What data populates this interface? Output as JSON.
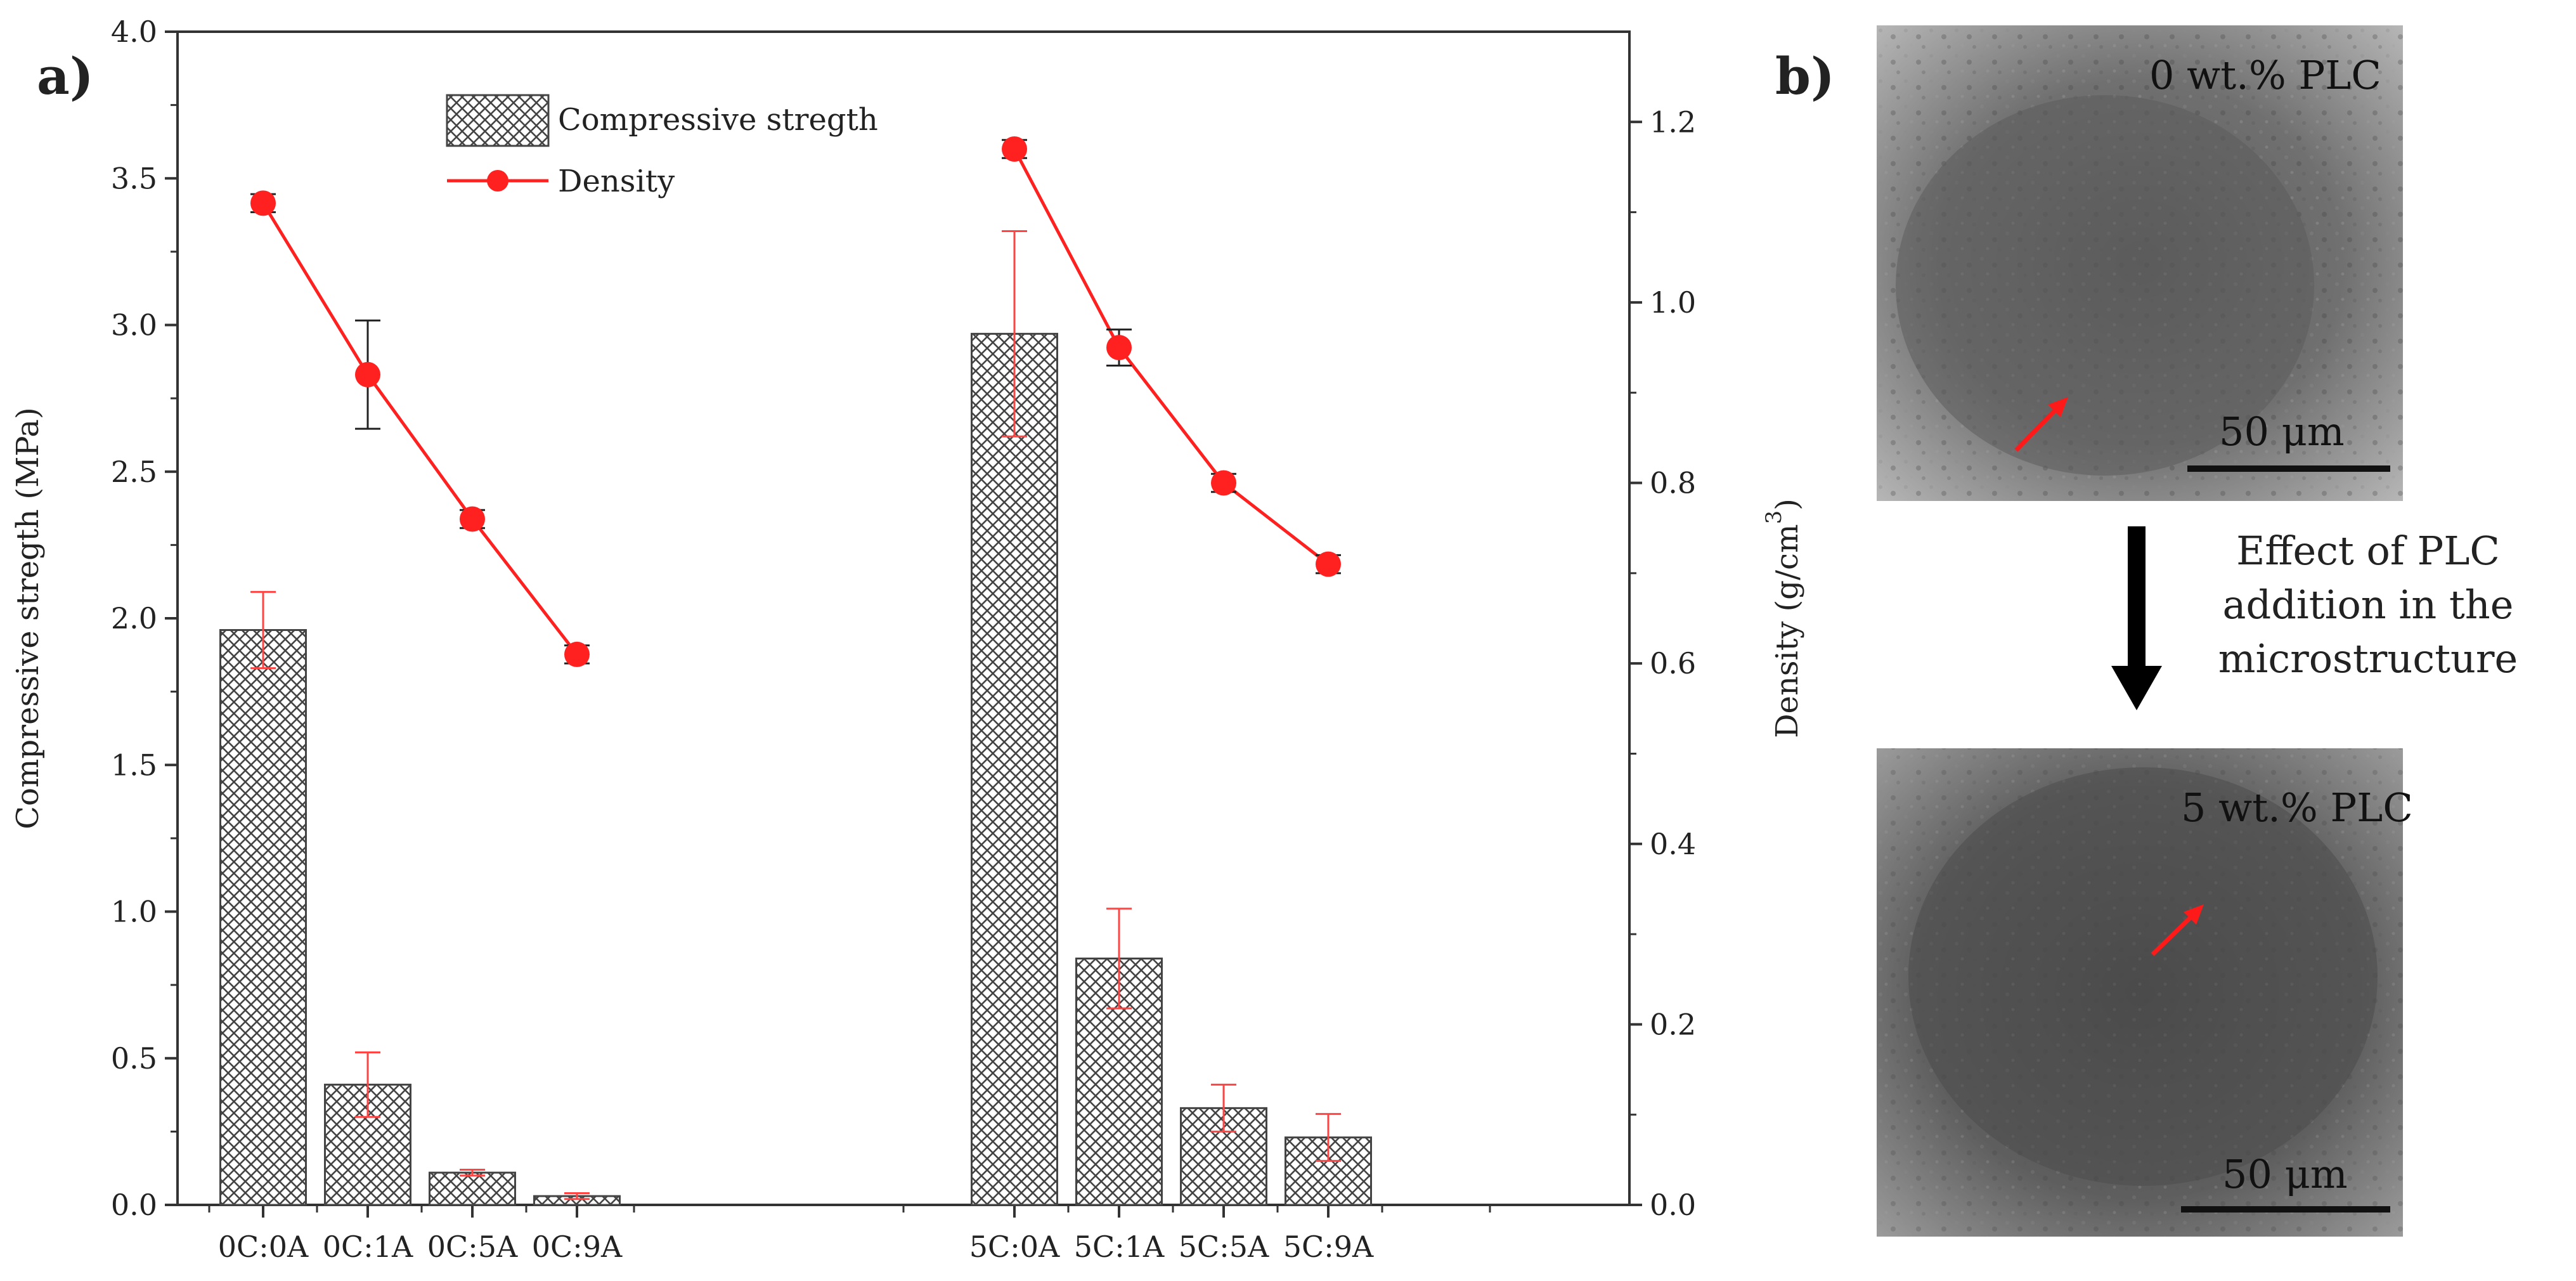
{
  "panels": {
    "a": "a)",
    "b": "b)"
  },
  "chart_data": {
    "type": "bar",
    "categories": [
      "0C:0A",
      "0C:1A",
      "0C:5A",
      "0C:9A",
      "5C:0A",
      "5C:1A",
      "5C:5A",
      "5C:9A"
    ],
    "series": [
      {
        "name": "Compressive stregth",
        "kind": "bar",
        "axis": "left",
        "values": [
          1.96,
          0.41,
          0.11,
          0.03,
          2.97,
          0.84,
          0.33,
          0.23
        ],
        "errors": [
          0.13,
          0.11,
          0.01,
          0.01,
          0.35,
          0.17,
          0.08,
          0.08
        ]
      },
      {
        "name": "Density",
        "kind": "line",
        "axis": "right",
        "color": "#ff2020",
        "values": [
          1.11,
          0.92,
          0.76,
          0.61,
          1.17,
          0.95,
          0.8,
          0.71
        ],
        "errors": [
          0.01,
          0.06,
          0.01,
          0.01,
          0.01,
          0.02,
          0.01,
          0.01
        ]
      }
    ],
    "ylabel": "Compressive stregth (MPa)",
    "y2label": "Density (g/cm",
    "y2label_sup": "3",
    "y2label_end": ")",
    "ylim": [
      0,
      4.0
    ],
    "y2lim": [
      0,
      1.3
    ],
    "yticks": [
      "0.0",
      "0.5",
      "1.0",
      "1.5",
      "2.0",
      "2.5",
      "3.0",
      "3.5",
      "4.0"
    ],
    "y2ticks": [
      "0.0",
      "0.2",
      "0.4",
      "0.6",
      "0.8",
      "1.0",
      "1.2"
    ],
    "legend_position": "top-left"
  },
  "micrographs": {
    "top_label": "0 wt.% PLC",
    "bottom_label": "5 wt.% PLC",
    "scale_bar": "50 μm",
    "caption_lines": [
      "Effect of PLC",
      "addition in the",
      "microstructure"
    ]
  },
  "colors": {
    "bar_error": "#ff4444",
    "density": "#ff2020",
    "arrow": "#ff1a1a"
  }
}
